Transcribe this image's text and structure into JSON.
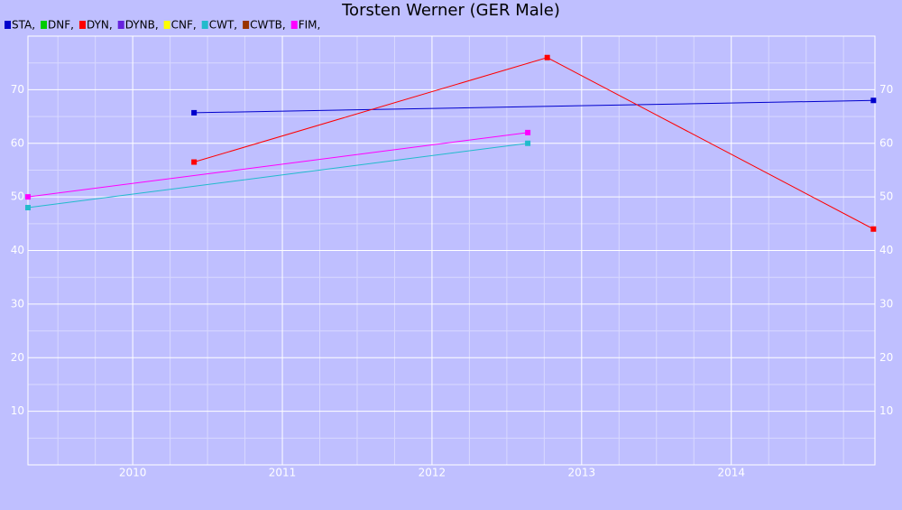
{
  "chart_data": {
    "type": "line",
    "title": "Torsten Werner (GER Male)",
    "xlim": [
      2009.3,
      2014.96
    ],
    "xticks": [
      2010,
      2011,
      2012,
      2013,
      2014
    ],
    "xminorticks": [
      2009.5,
      2009.75,
      2010.25,
      2010.5,
      2010.75,
      2011.25,
      2011.5,
      2011.75,
      2012.25,
      2012.5,
      2012.75,
      2013.25,
      2013.5,
      2013.75,
      2014.25,
      2014.5,
      2014.75
    ],
    "ylim": [
      0,
      80
    ],
    "yticks": [
      10,
      20,
      30,
      40,
      50,
      60,
      70
    ],
    "yminorticks": [
      5,
      15,
      25,
      35,
      45,
      55,
      65,
      75
    ],
    "grid": true,
    "series": [
      {
        "name": "STA,",
        "color": "#0000cc",
        "x": [
          2010.41,
          2014.95
        ],
        "values": [
          65.7,
          68
        ]
      },
      {
        "name": "DNF,",
        "color": "#00cc00",
        "x": [],
        "values": []
      },
      {
        "name": "DYN,",
        "color": "#ff0000",
        "x": [
          2010.41,
          2012.77,
          2014.95
        ],
        "values": [
          56.5,
          76,
          44
        ]
      },
      {
        "name": "DYNB,",
        "color": "#6622dd",
        "x": [],
        "values": []
      },
      {
        "name": "CNF,",
        "color": "#ffff00",
        "x": [],
        "values": []
      },
      {
        "name": "CWT,",
        "color": "#22bbcc",
        "x": [
          2009.3,
          2012.64
        ],
        "values": [
          48,
          60
        ]
      },
      {
        "name": "CWTB,",
        "color": "#993300",
        "x": [],
        "values": []
      },
      {
        "name": "FIM,",
        "color": "#ff00ff",
        "x": [
          2009.3,
          2012.64
        ],
        "values": [
          50,
          62
        ]
      }
    ]
  }
}
